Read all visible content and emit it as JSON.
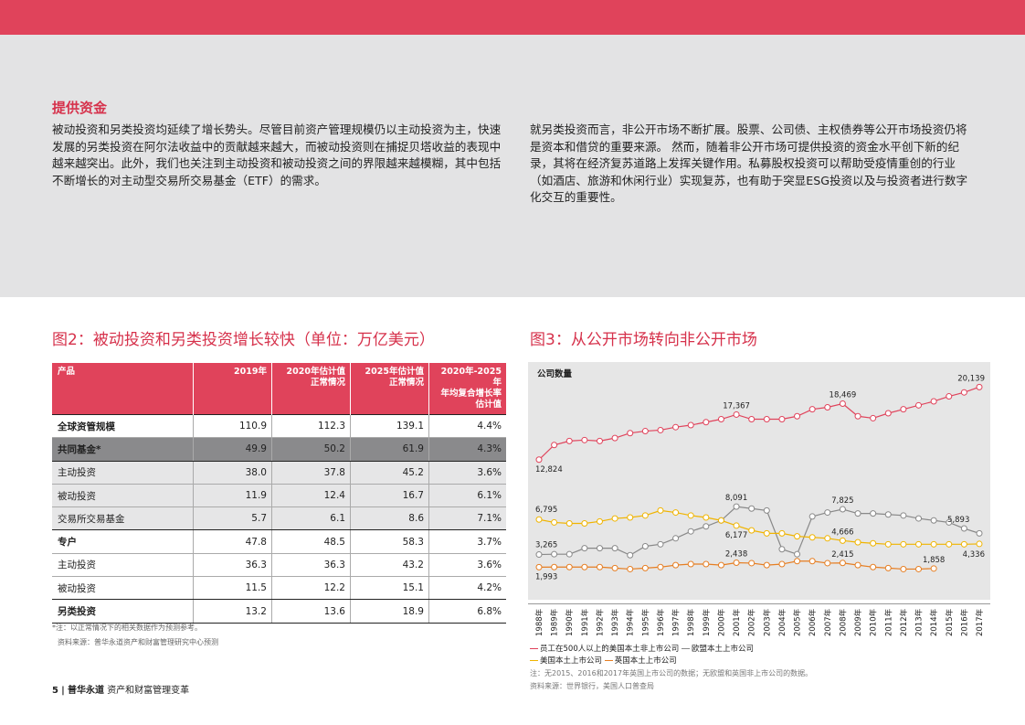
{
  "section": {
    "title": "提供资金",
    "left_text": "被动投资和另类投资均延续了增长势头。尽管目前资产管理规模仍以主动投资为主，快速发展的另类投资在阿尔法收益中的贡献越来越大，而被动投资则在捕捉贝塔收益的表现中越来越突出。此外，我们也关注到主动投资和被动投资之间的界限越来越模糊，其中包括不断增长的对主动型交易所交易基金（ETF）的需求。",
    "right_text": "就另类投资而言，非公开市场不断扩展。股票、公司债、主权债券等公开市场投资仍将是资本和借贷的重要来源。 然而，随着非公开市场可提供投资的资金水平创下新的纪录，其将在经济复苏道路上发挥关键作用。私募股权投资可以帮助受疫情重创的行业（如酒店、旅游和休闲行业）实现复苏，也有助于突显ESG投资以及与投资者进行数字化交互的重要性。"
  },
  "figure2": {
    "title": "图2：被动投资和另类投资增长较快（单位：万亿美元）",
    "headers": [
      "产品",
      "2019年",
      "2020年估计值\n正常情况",
      "2025年估计值\n正常情况",
      "2020年-2025年\n年均复合增长率\n估计值"
    ],
    "rows": [
      {
        "label": "全球资管规模",
        "values": [
          "110.9",
          "112.3",
          "139.1",
          "4.4%"
        ]
      },
      {
        "label": "共同基金*",
        "values": [
          "49.9",
          "50.2",
          "61.9",
          "4.3%"
        ]
      },
      {
        "label": "主动投资",
        "values": [
          "38.0",
          "37.8",
          "45.2",
          "3.6%"
        ]
      },
      {
        "label": "被动投资",
        "values": [
          "11.9",
          "12.4",
          "16.7",
          "6.1%"
        ]
      },
      {
        "label": "交易所交易基金",
        "values": [
          "5.7",
          "6.1",
          "8.6",
          "7.1%"
        ]
      },
      {
        "label": "专户",
        "values": [
          "47.8",
          "48.5",
          "58.3",
          "3.7%"
        ]
      },
      {
        "label": "主动投资",
        "values": [
          "36.3",
          "36.3",
          "43.2",
          "3.6%"
        ]
      },
      {
        "label": "被动投资",
        "values": [
          "11.5",
          "12.2",
          "15.1",
          "4.2%"
        ]
      },
      {
        "label": "另类投资",
        "values": [
          "13.2",
          "13.6",
          "18.9",
          "6.8%"
        ]
      }
    ],
    "note": "*注：以正常情况下的相关数据作为预测参考。",
    "source": "资料来源：普华永道资产和财富管理研究中心预测"
  },
  "figure3": {
    "title": "图3：从公开市场转向非公开市场",
    "note": "注：无2015、2016和2017年英国上市公司的数据；无欧盟和英国非上市公司的数据。",
    "source": "资料来源：世界银行，美国人口普查局"
  },
  "chart_data": {
    "type": "line",
    "ylabel": "公司数量",
    "x": [
      "1988年",
      "1989年",
      "1990年",
      "1991年",
      "1992年",
      "1993年",
      "1994年",
      "1995年",
      "1996年",
      "1997年",
      "1998年",
      "1999年",
      "2000年",
      "2001年",
      "2002年",
      "2003年",
      "2004年",
      "2005年",
      "2006年",
      "2007年",
      "2008年",
      "2009年",
      "2010年",
      "2011年",
      "2012年",
      "2013年",
      "2014年",
      "2015年",
      "2016年",
      "2017年"
    ],
    "series": [
      {
        "name": "员工在500人以上的美国本土非上市公司",
        "color": "#e0435b",
        "values": [
          12824,
          14300,
          14700,
          14800,
          14700,
          15000,
          15500,
          15700,
          15800,
          16100,
          16300,
          16600,
          16900,
          17367,
          16900,
          16900,
          16900,
          17200,
          17900,
          18100,
          18469,
          17200,
          17000,
          17500,
          17900,
          18300,
          18700,
          19200,
          19600,
          20139
        ]
      },
      {
        "name": "欧盟本土上市公司",
        "color": "#888888",
        "values": [
          3265,
          3300,
          3300,
          3900,
          3900,
          3900,
          3200,
          4100,
          4300,
          4900,
          5600,
          6100,
          6700,
          8091,
          7900,
          7700,
          3800,
          3300,
          7100,
          7500,
          7825,
          7400,
          7400,
          7300,
          7200,
          6900,
          6700,
          6500,
          5893,
          5400
        ]
      },
      {
        "name": "美国本土上市公司",
        "color": "#f0b400",
        "values": [
          6795,
          6500,
          6400,
          6400,
          6600,
          6900,
          7000,
          7200,
          7700,
          7500,
          7200,
          7000,
          6700,
          6177,
          5700,
          5400,
          5400,
          5100,
          5000,
          4900,
          4666,
          4500,
          4400,
          4300,
          4300,
          4300,
          4300,
          4300,
          4300,
          4336
        ]
      },
      {
        "name": "英国本土上市公司",
        "color": "#e67e22",
        "values": [
          1993,
          2000,
          2000,
          2000,
          2000,
          1900,
          1800,
          1900,
          2000,
          2200,
          2300,
          2300,
          2200,
          2438,
          2400,
          2200,
          2300,
          2600,
          2600,
          2400,
          2415,
          2200,
          2000,
          1900,
          1800,
          1800,
          1858,
          null,
          null,
          null
        ]
      }
    ],
    "data_labels": [
      {
        "series": 0,
        "index": 0,
        "text": "12,824"
      },
      {
        "series": 0,
        "index": 13,
        "text": "17,367"
      },
      {
        "series": 0,
        "index": 20,
        "text": "18,469"
      },
      {
        "series": 0,
        "index": 29,
        "text": "20,139"
      },
      {
        "series": 1,
        "index": 0,
        "text": "3,265"
      },
      {
        "series": 1,
        "index": 13,
        "text": "8,091"
      },
      {
        "series": 1,
        "index": 20,
        "text": "7,825"
      },
      {
        "series": 1,
        "index": 28,
        "text": "5,893"
      },
      {
        "series": 2,
        "index": 0,
        "text": "6,795"
      },
      {
        "series": 2,
        "index": 13,
        "text": "6,177"
      },
      {
        "series": 2,
        "index": 20,
        "text": "4,666"
      },
      {
        "series": 2,
        "index": 29,
        "text": "4,336"
      },
      {
        "series": 3,
        "index": 0,
        "text": "1,993"
      },
      {
        "series": 3,
        "index": 13,
        "text": "2,438"
      },
      {
        "series": 3,
        "index": 20,
        "text": "2,415"
      },
      {
        "series": 3,
        "index": 26,
        "text": "1,858"
      }
    ],
    "ylim": [
      0,
      21000
    ],
    "grid": false
  },
  "footer": {
    "page": "5",
    "brand": "普华永道",
    "title": "资产和财富管理变革"
  },
  "colors": {
    "accent": "#e0435b",
    "panel": "#e3e3e4"
  }
}
